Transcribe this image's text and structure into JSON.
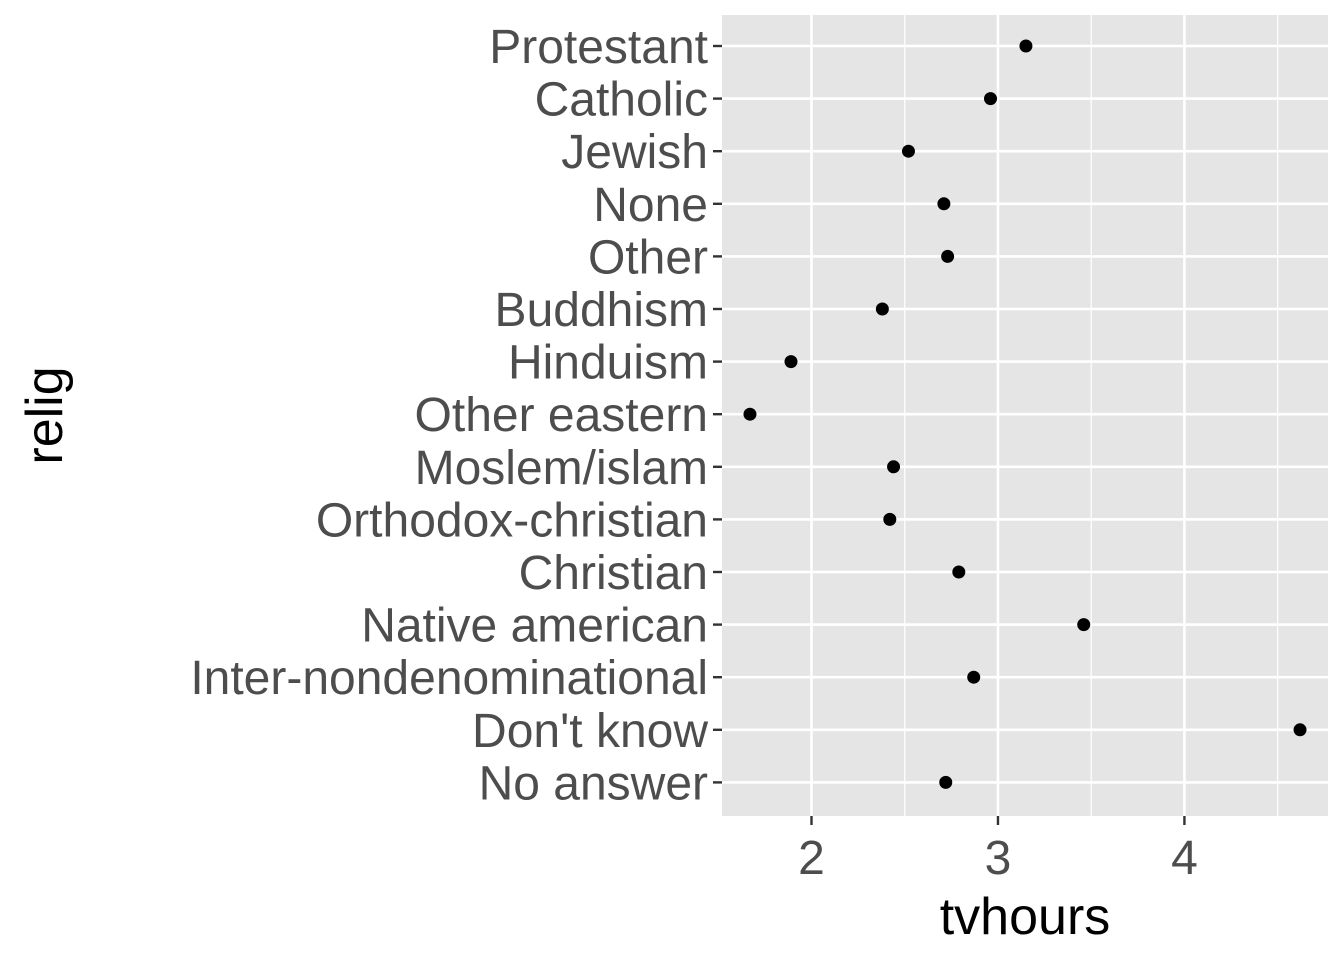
{
  "chart_data": {
    "type": "scatter",
    "xlabel": "tvhours",
    "ylabel": "relig",
    "xlim": [
      1.52,
      4.77
    ],
    "x_ticks": [
      2,
      3,
      4
    ],
    "categories": [
      "Protestant",
      "Catholic",
      "Jewish",
      "None",
      "Other",
      "Buddhism",
      "Hinduism",
      "Other eastern",
      "Moslem/islam",
      "Orthodox-christian",
      "Christian",
      "Native american",
      "Inter-nondenominational",
      "Don't know",
      "No answer"
    ],
    "values": [
      3.15,
      2.96,
      2.52,
      2.71,
      2.73,
      2.38,
      1.89,
      1.67,
      2.44,
      2.42,
      2.79,
      3.46,
      2.87,
      4.62,
      2.72
    ],
    "grid": true,
    "legend": "none",
    "colors": {
      "panel_background": "#e5e5e5",
      "grid_line": "#ffffff",
      "point": "#000000",
      "tick_text": "#4d4d4d",
      "axis_title": "#000000"
    }
  }
}
